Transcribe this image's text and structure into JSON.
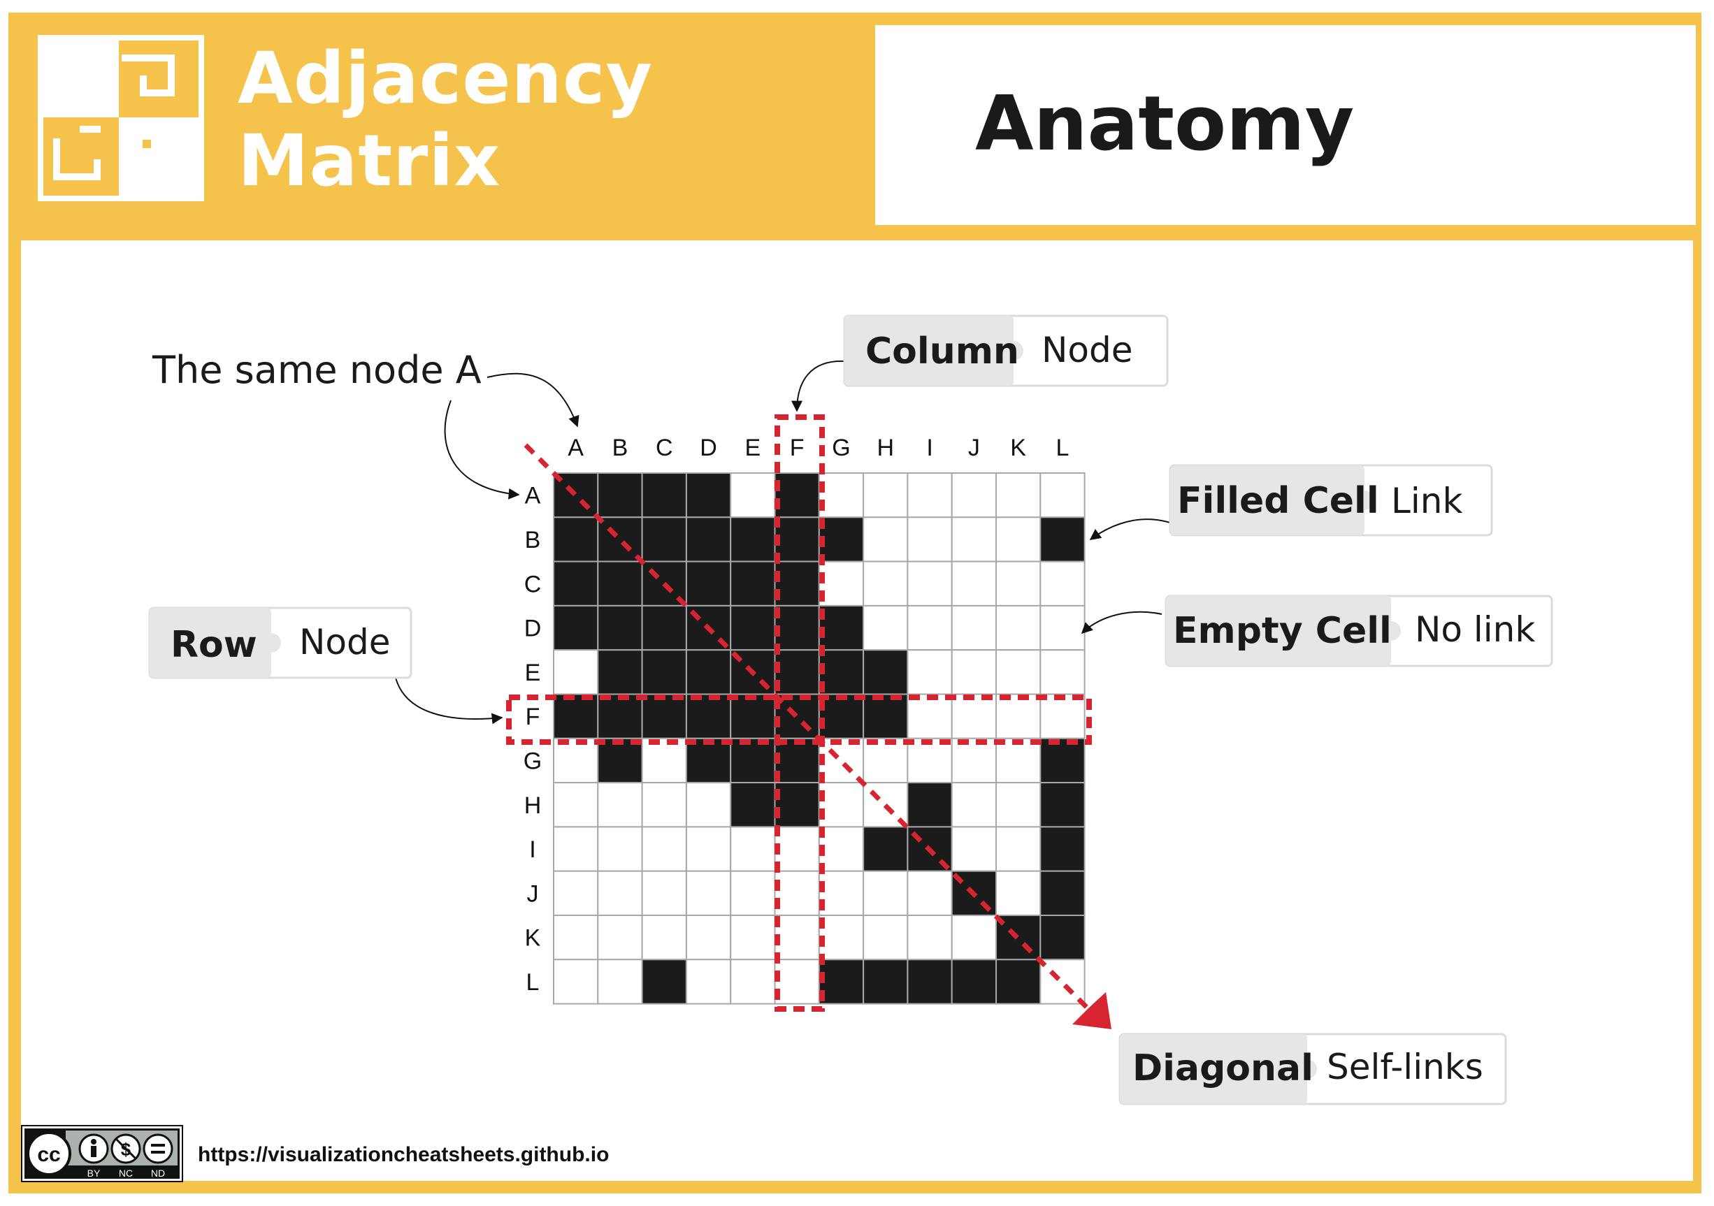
{
  "header": {
    "title_line1": "Adjacency",
    "title_line2": "Matrix",
    "section_title": "Anatomy"
  },
  "matrix": {
    "column_labels": [
      "A",
      "B",
      "C",
      "D",
      "E",
      "F",
      "G",
      "H",
      "I",
      "J",
      "K",
      "L"
    ],
    "row_labels": [
      "A",
      "B",
      "C",
      "D",
      "E",
      "F",
      "G",
      "H",
      "I",
      "J",
      "K",
      "L"
    ],
    "cells": [
      [
        1,
        1,
        1,
        1,
        0,
        1,
        0,
        0,
        0,
        0,
        0,
        0
      ],
      [
        1,
        1,
        1,
        1,
        1,
        1,
        1,
        0,
        0,
        0,
        0,
        1
      ],
      [
        1,
        1,
        1,
        1,
        1,
        1,
        0,
        0,
        0,
        0,
        0,
        0
      ],
      [
        1,
        1,
        1,
        1,
        1,
        1,
        1,
        0,
        0,
        0,
        0,
        0
      ],
      [
        0,
        1,
        1,
        1,
        1,
        1,
        1,
        1,
        0,
        0,
        0,
        0
      ],
      [
        1,
        1,
        1,
        1,
        1,
        1,
        1,
        1,
        0,
        0,
        0,
        0
      ],
      [
        0,
        1,
        0,
        1,
        1,
        1,
        0,
        0,
        0,
        0,
        0,
        1
      ],
      [
        0,
        0,
        0,
        0,
        1,
        1,
        0,
        0,
        1,
        0,
        0,
        1
      ],
      [
        0,
        0,
        0,
        0,
        0,
        0,
        0,
        1,
        1,
        0,
        0,
        1
      ],
      [
        0,
        0,
        0,
        0,
        0,
        0,
        0,
        0,
        0,
        1,
        0,
        1
      ],
      [
        0,
        0,
        0,
        0,
        0,
        0,
        0,
        0,
        0,
        0,
        1,
        1
      ],
      [
        0,
        0,
        1,
        0,
        0,
        0,
        1,
        1,
        1,
        1,
        1,
        0
      ]
    ],
    "highlighted_row": "F",
    "highlighted_column": "F",
    "filled_color": "#1b1b1b",
    "empty_color": "#ffffff",
    "grid_color": "#a8a8a8",
    "highlight_color": "#d62530"
  },
  "annotations": {
    "same_node": "The same node A",
    "column": {
      "key": "Column",
      "value": "Node"
    },
    "row": {
      "key": "Row",
      "value": "Node"
    },
    "filled_cell": {
      "key": "Filled Cell",
      "value": "Link"
    },
    "empty_cell": {
      "key": "Empty Cell",
      "value": "No link"
    },
    "diagonal": {
      "key": "Diagonal",
      "value": "Self-links"
    }
  },
  "footer": {
    "url": "https://visualizationcheatsheets.github.io",
    "license_labels": [
      "BY",
      "NC",
      "ND"
    ],
    "license_mark": "cc"
  },
  "colors": {
    "frame": "#f5c24c",
    "tag_key_bg": "#e6e6e6",
    "tag_border": "#dedede"
  }
}
